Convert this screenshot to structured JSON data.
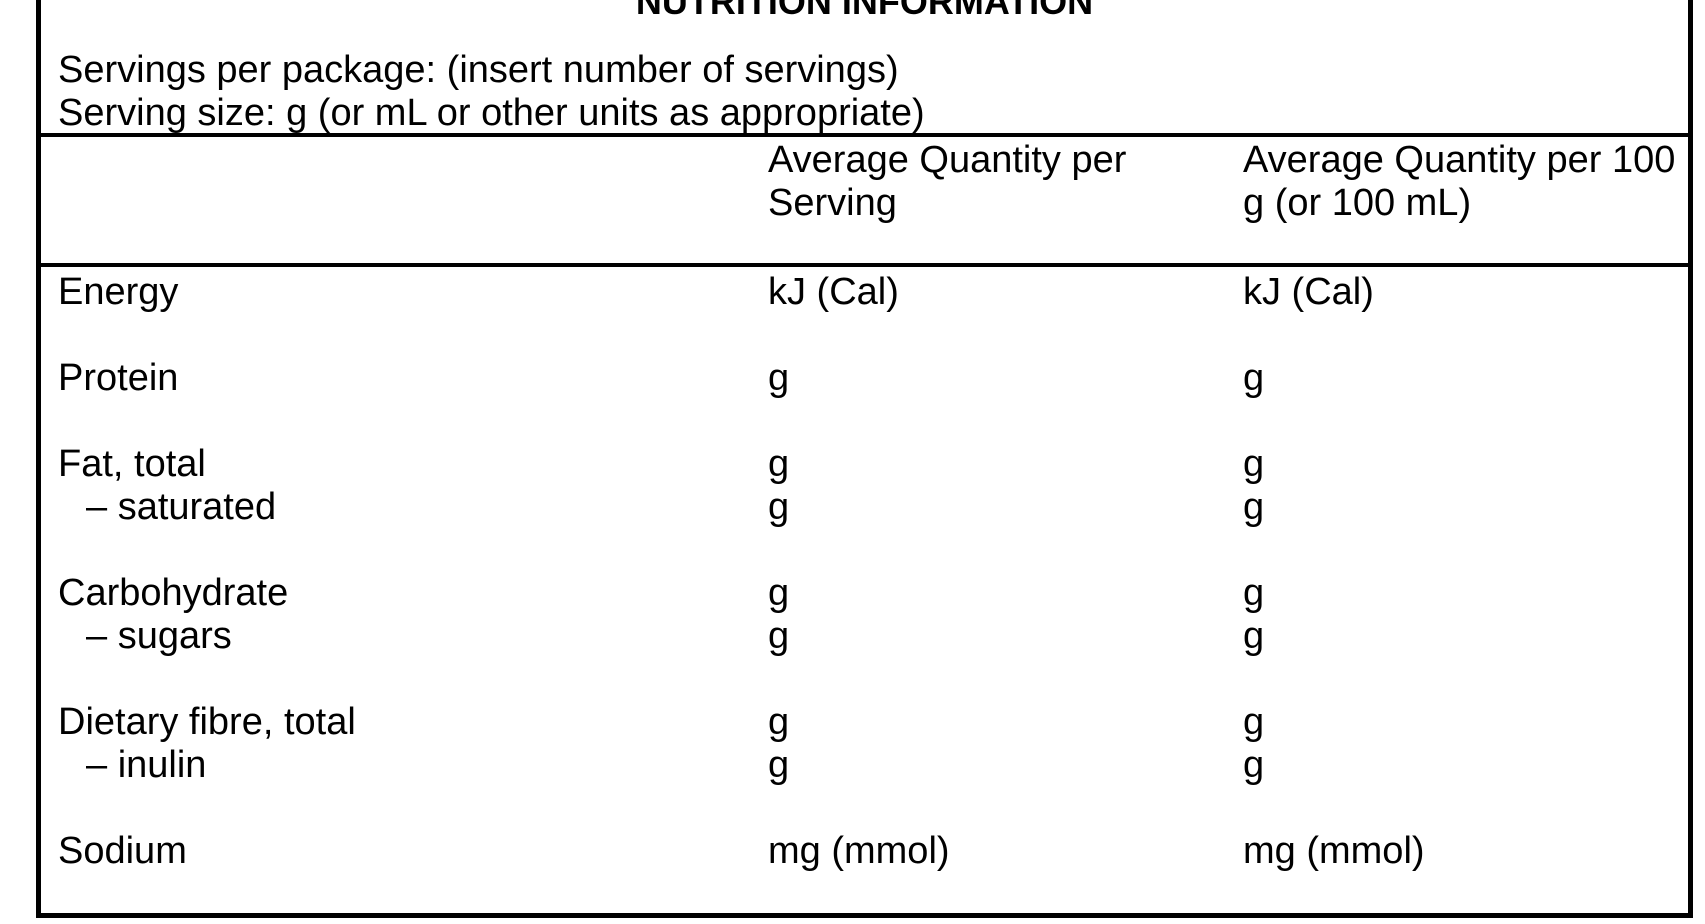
{
  "panel": {
    "title": "NUTRITION INFORMATION",
    "servings_per_package": "Servings per package: (insert number of servings)",
    "serving_size": "Serving size: g (or mL or other units as appropriate)",
    "columns": {
      "nutrient": "",
      "per_serving": "Average Quantity per Serving",
      "per_100": "Average Quantity per 100 g (or 100 mL)"
    },
    "rows": [
      {
        "nutrient": "Energy",
        "per_serving": "kJ (Cal)",
        "per_100": "kJ (Cal)",
        "indent": false,
        "gap_before": false
      },
      {
        "nutrient": "Protein",
        "per_serving": "g",
        "per_100": "g",
        "indent": false,
        "gap_before": true
      },
      {
        "nutrient": "Fat, total",
        "per_serving": "g",
        "per_100": "g",
        "indent": false,
        "gap_before": true
      },
      {
        "nutrient": "– saturated",
        "per_serving": "g",
        "per_100": "g",
        "indent": true,
        "gap_before": false
      },
      {
        "nutrient": "Carbohydrate",
        "per_serving": "g",
        "per_100": "g",
        "indent": false,
        "gap_before": true
      },
      {
        "nutrient": "– sugars",
        "per_serving": "g",
        "per_100": "g",
        "indent": true,
        "gap_before": false
      },
      {
        "nutrient": "Dietary fibre, total",
        "per_serving": "g",
        "per_100": "g",
        "indent": false,
        "gap_before": true
      },
      {
        "nutrient": "– inulin",
        "per_serving": "g",
        "per_100": "g",
        "indent": true,
        "gap_before": false
      },
      {
        "nutrient": "Sodium",
        "per_serving": "mg (mmol)",
        "per_100": "mg (mmol)",
        "indent": false,
        "gap_before": true
      }
    ],
    "colors": {
      "ink": "#000000",
      "paper": "#ffffff"
    }
  }
}
